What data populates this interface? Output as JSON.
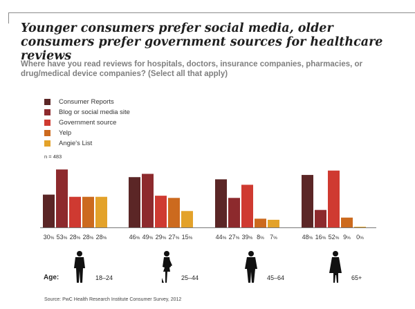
{
  "title": "Younger consumers prefer social media, older consumers prefer government sources for healthcare reviews",
  "subtitle": "Where have you read reviews for hospitals, doctors, insurance companies, pharmacies, or drug/medical device companies? (Select all that apply)",
  "n_label": "n = 483",
  "age_prefix": "Age:",
  "source": "Source: PwC Health Research Institute Consumer Survey, 2012",
  "chart_data": {
    "type": "bar",
    "title": "Younger consumers prefer social media, older consumers prefer government sources for healthcare reviews",
    "xlabel": "Age",
    "ylabel": "",
    "ylim": [
      0,
      55
    ],
    "grid": false,
    "legend_position": "top-left",
    "categories": [
      "18–24",
      "25–44",
      "45–64",
      "65+"
    ],
    "series": [
      {
        "name": "Consumer Reports",
        "color": "#5b2626",
        "values": [
          30,
          46,
          44,
          48
        ]
      },
      {
        "name": "Blog or social media site",
        "color": "#8d2a2d",
        "values": [
          53,
          49,
          27,
          16
        ]
      },
      {
        "name": "Government source",
        "color": "#cf3a31",
        "values": [
          28,
          29,
          39,
          52
        ]
      },
      {
        "name": "Yelp",
        "color": "#cc6a1e",
        "values": [
          28,
          27,
          8,
          9
        ]
      },
      {
        "name": "Angie's List",
        "color": "#e3a22a",
        "values": [
          28,
          15,
          7,
          0
        ]
      }
    ],
    "value_suffix": "%"
  }
}
